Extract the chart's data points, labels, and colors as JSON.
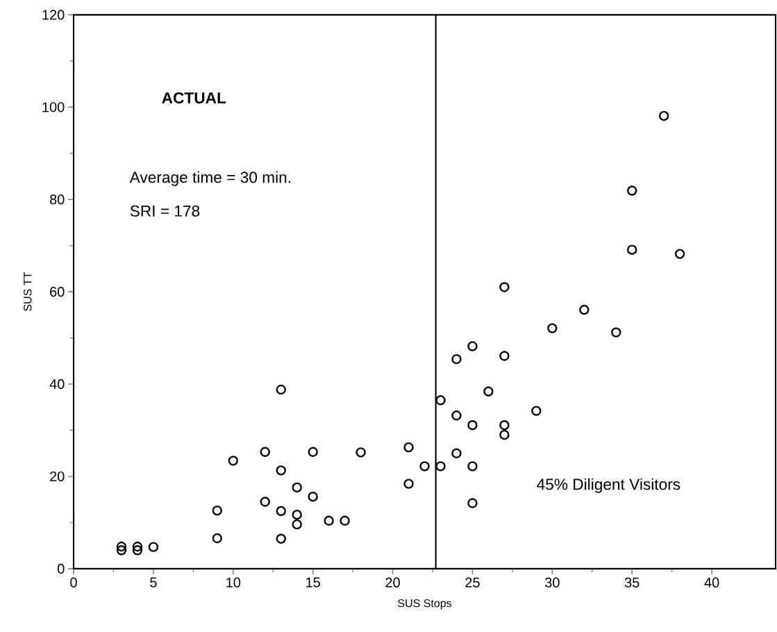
{
  "chart_data": {
    "type": "scatter",
    "xlabel": "SUS Stops",
    "ylabel": "SUS TT",
    "x": [
      3,
      3,
      4,
      4,
      5,
      9,
      9,
      10,
      12,
      12,
      13,
      13,
      13,
      13,
      14,
      14,
      14,
      15,
      15,
      16,
      17,
      18,
      21,
      21,
      22,
      23,
      23,
      27,
      32,
      30,
      34,
      25,
      24,
      27,
      26,
      29,
      24,
      25,
      27,
      27,
      24,
      25,
      25,
      37,
      35,
      35,
      38
    ],
    "values": [
      4,
      4.8,
      4,
      4.8,
      4.7,
      12.6,
      6.6,
      23.4,
      25.3,
      14.5,
      38.8,
      21.3,
      12.5,
      6.5,
      17.6,
      11.7,
      9.6,
      25.3,
      15.6,
      10.4,
      10.4,
      25.2,
      26.3,
      18.4,
      22.2,
      22.2,
      36.5,
      61,
      56.1,
      52.1,
      51.2,
      48.2,
      45.4,
      46.1,
      38.4,
      34.2,
      33.2,
      31.1,
      31.1,
      29,
      25,
      22.2,
      14.2,
      98.1,
      81.9,
      69.1,
      68.2
    ],
    "color": "#000000",
    "marker": "circle",
    "xlim": [
      0,
      44
    ],
    "ylim": [
      0,
      120
    ],
    "xticks": [
      0,
      5,
      10,
      15,
      20,
      25,
      30,
      35,
      40
    ],
    "yticks": [
      0,
      20,
      40,
      60,
      80,
      100,
      120
    ],
    "ref_lines": [
      {
        "axis": "x",
        "value": 22.7,
        "color": "#000000"
      }
    ],
    "annotations": [
      {
        "text": "**ACTUAL**"
      },
      {
        "text": "Average time = 30 min."
      },
      {
        "text": "SRI = 178"
      },
      {
        "text": "45% Diligent Visitors"
      }
    ],
    "grid": false
  }
}
